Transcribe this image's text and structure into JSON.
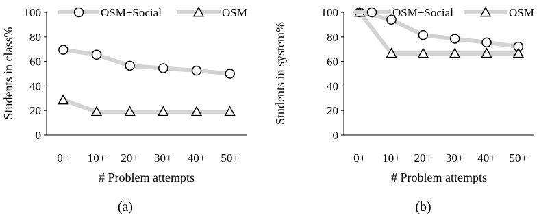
{
  "chart_data": [
    {
      "type": "line",
      "caption": "(a)",
      "ylabel": "Students in class%",
      "xlabel": "# Problem attempts",
      "categories": [
        "0+",
        "10+",
        "20+",
        "30+",
        "40+",
        "50+"
      ],
      "ylim": [
        0,
        100
      ],
      "yticks": [
        0,
        20,
        40,
        60,
        80,
        100
      ],
      "legend_position": "top",
      "grid": false,
      "series": [
        {
          "name": "OSM+Social",
          "marker": "circle",
          "values": [
            69.5,
            65.5,
            56.5,
            54.5,
            52.5,
            50
          ]
        },
        {
          "name": "OSM",
          "marker": "triangle",
          "values": [
            28.5,
            19,
            19,
            19,
            19,
            19
          ]
        }
      ]
    },
    {
      "type": "line",
      "caption": "(b)",
      "ylabel": "Students in system%",
      "xlabel": "# Problem attempts",
      "categories": [
        "0+",
        "10+",
        "20+",
        "30+",
        "40+",
        "50+"
      ],
      "ylim": [
        0,
        100
      ],
      "yticks": [
        0,
        20,
        40,
        60,
        80,
        100
      ],
      "legend_position": "top",
      "grid": false,
      "series": [
        {
          "name": "OSM+Social",
          "marker": "circle",
          "values": [
            100,
            94,
            81.5,
            78.5,
            75.5,
            72
          ]
        },
        {
          "name": "OSM",
          "marker": "triangle",
          "values": [
            100,
            66.5,
            66.5,
            66.5,
            66.5,
            66.5
          ]
        }
      ]
    }
  ],
  "colors": {
    "line": "#d3d3d3",
    "axis": "#000000",
    "marker_fill": "#ffffff",
    "marker_stroke": "#000000"
  }
}
